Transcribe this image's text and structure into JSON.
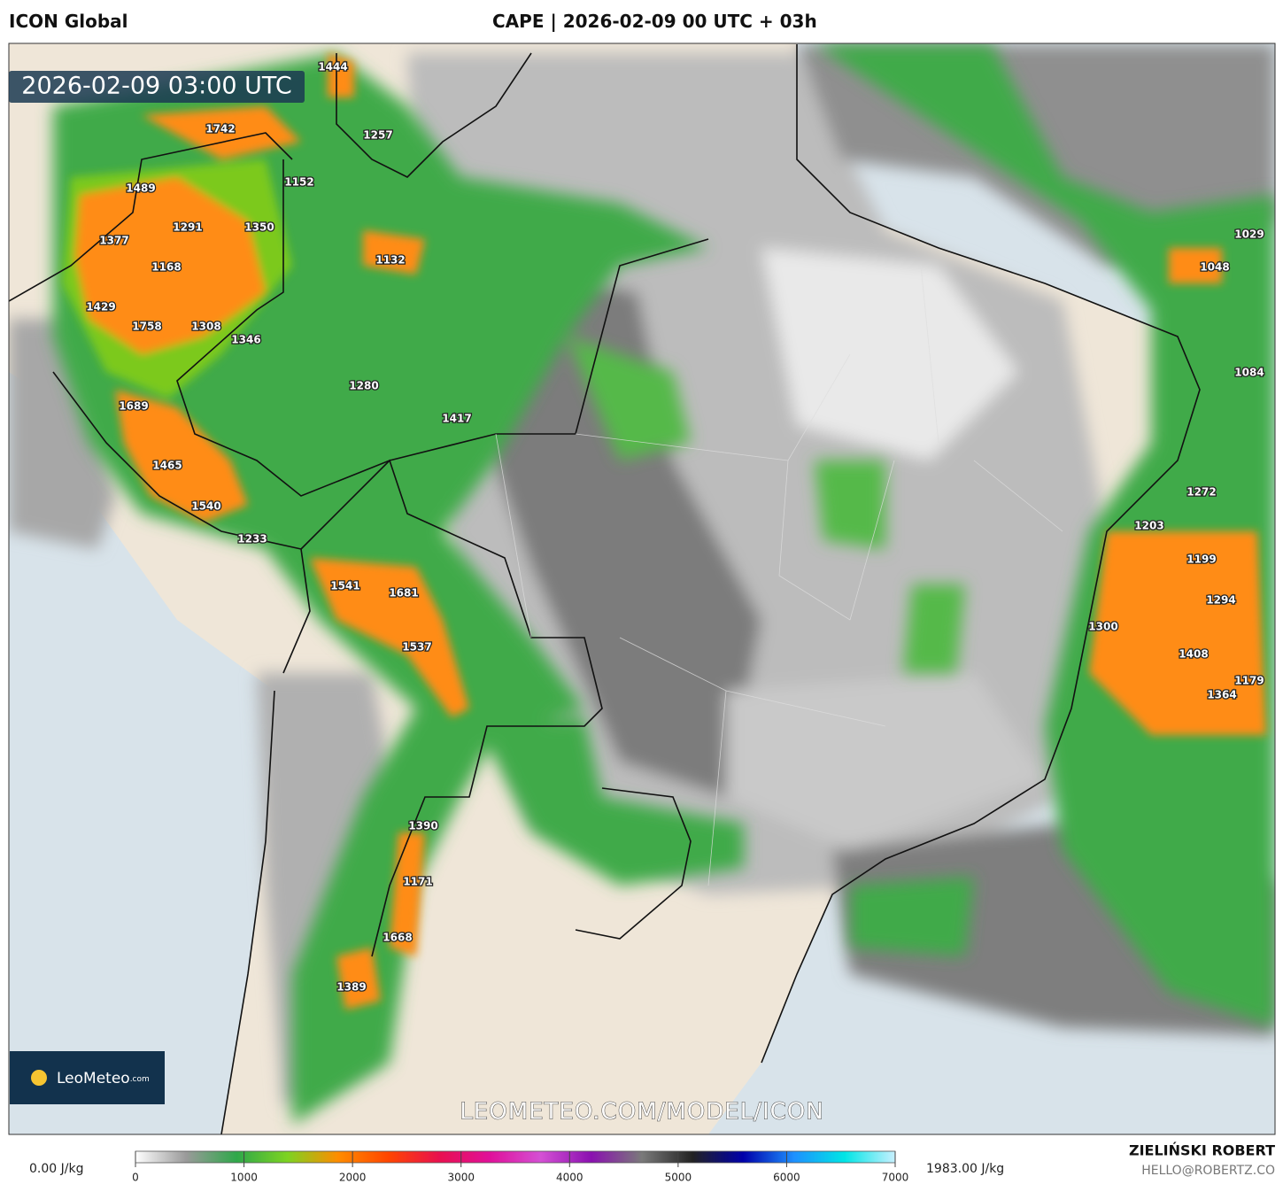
{
  "header": {
    "model": "ICON Global",
    "title": "CAPE | 2026-02-09 00 UTC + 03h"
  },
  "map": {
    "timestamp": "2026-02-09 03:00 UTC",
    "watermark": "LEOMETEO.COM/MODEL/ICON",
    "logo": "LeoMeteo",
    "logo_suffix": ".com",
    "labels": [
      1444,
      1742,
      1257,
      1152,
      1489,
      1291,
      1350,
      1377,
      1168,
      1132,
      1429,
      1758,
      1308,
      1346,
      1280,
      1689,
      1417,
      1465,
      1540,
      1233,
      1541,
      1681,
      1537,
      1390,
      1171,
      1668,
      1389,
      1029,
      1048,
      1084,
      1272,
      1203,
      1199,
      1294,
      1300,
      1408,
      1179,
      1364
    ]
  },
  "legend": {
    "min_label": "0.00 J/kg",
    "max_label": "1983.00 J/kg",
    "range": [
      0,
      7000
    ],
    "ticks": [
      0,
      1000,
      2000,
      3000,
      4000,
      5000,
      6000,
      7000
    ],
    "colors": [
      "#ffffff",
      "#9a9a9a",
      "#2fa84a",
      "#7dd321",
      "#ff8c00",
      "#ff4500",
      "#e8104f",
      "#e0109a",
      "#d450d4",
      "#8a10b0",
      "#7a7a7a",
      "#222222",
      "#0000aa",
      "#1e90ff",
      "#00e5e5",
      "#c8f0ff"
    ]
  },
  "footer": {
    "author": "ZIELIŃSKI ROBERT",
    "email": "HELLO@ROBERTZ.CO"
  }
}
